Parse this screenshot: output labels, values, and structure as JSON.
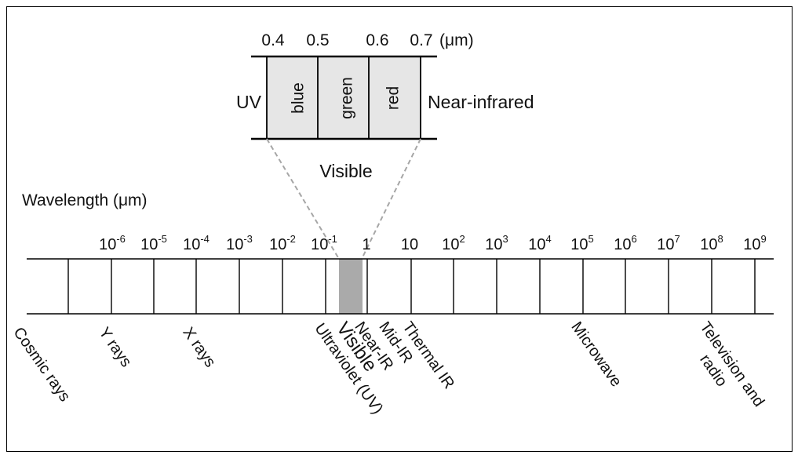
{
  "visible_inset": {
    "ticks": [
      "0.4",
      "0.5",
      "0.6",
      "0.7"
    ],
    "unit": "(μm)",
    "bands": [
      {
        "label": "blue"
      },
      {
        "label": "green"
      },
      {
        "label": "red"
      }
    ],
    "left_label": "UV",
    "right_label": "Near-infrared",
    "caption": "Visible"
  },
  "main_scale": {
    "axis_label": "Wavelength (μm)",
    "ticks": [
      {
        "base": "10",
        "exp": "-6"
      },
      {
        "base": "10",
        "exp": "-5"
      },
      {
        "base": "10",
        "exp": "-4"
      },
      {
        "base": "10",
        "exp": "-3"
      },
      {
        "base": "10",
        "exp": "-2"
      },
      {
        "base": "10",
        "exp": "-1"
      },
      {
        "base": "1",
        "exp": ""
      },
      {
        "base": "10",
        "exp": ""
      },
      {
        "base": "10",
        "exp": "2"
      },
      {
        "base": "10",
        "exp": "3"
      },
      {
        "base": "10",
        "exp": "4"
      },
      {
        "base": "10",
        "exp": "5"
      },
      {
        "base": "10",
        "exp": "6"
      },
      {
        "base": "10",
        "exp": "7"
      },
      {
        "base": "10",
        "exp": "8"
      },
      {
        "base": "10",
        "exp": "9"
      }
    ],
    "regions": [
      {
        "text": "Cosmic rays",
        "lines": [
          "Cosmic rays"
        ]
      },
      {
        "text": "Y rays",
        "lines": [
          "Y rays"
        ]
      },
      {
        "text": "X rays",
        "lines": [
          "X rays"
        ]
      },
      {
        "text": "Ultraviolet (UV)",
        "lines": [
          "Ultraviolet (UV)"
        ]
      },
      {
        "text": "Visible",
        "lines": [
          "Visible"
        ]
      },
      {
        "text": "Near-IR",
        "lines": [
          "Near-IR"
        ]
      },
      {
        "text": "Mid-IR",
        "lines": [
          "Mid-IR"
        ]
      },
      {
        "text": "Thermal IR",
        "lines": [
          "Thermal IR"
        ]
      },
      {
        "text": "Microwave",
        "lines": [
          "Microwave"
        ]
      },
      {
        "text": "Television and radio",
        "lines": [
          "Television and",
          "radio"
        ]
      }
    ],
    "highlight_color": "#aaaaaa"
  }
}
